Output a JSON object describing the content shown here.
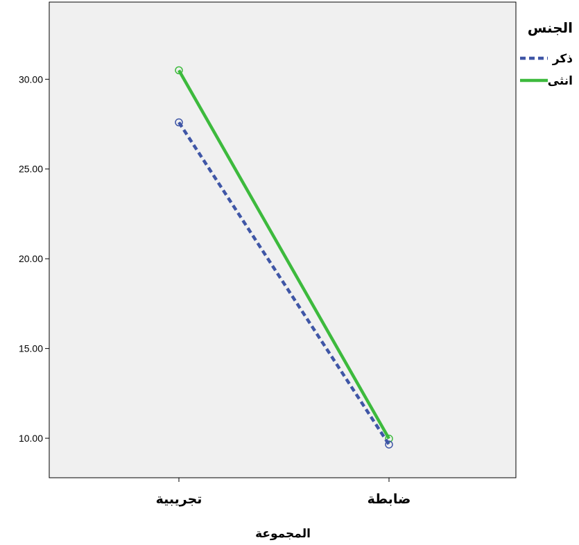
{
  "chart_data": {
    "type": "line",
    "categories": [
      "تجريبية",
      "ضابطة"
    ],
    "series": [
      {
        "name": "ذكر",
        "values": [
          27.6,
          9.65
        ],
        "color": "#3f56a6",
        "style": "dashed"
      },
      {
        "name": "انثى",
        "values": [
          30.5,
          9.98
        ],
        "color": "#3dba3d",
        "style": "solid"
      }
    ],
    "xlabel": "المجموعة",
    "ylabel": "",
    "ylim": [
      7.8,
      34.3
    ],
    "yticks": [
      "10.00",
      "15.00",
      "20.00",
      "25.00",
      "30.00"
    ],
    "legend_title": "الجنس",
    "legend_position": "top-right",
    "plot_background": "#f0f0f0",
    "grid": false
  }
}
